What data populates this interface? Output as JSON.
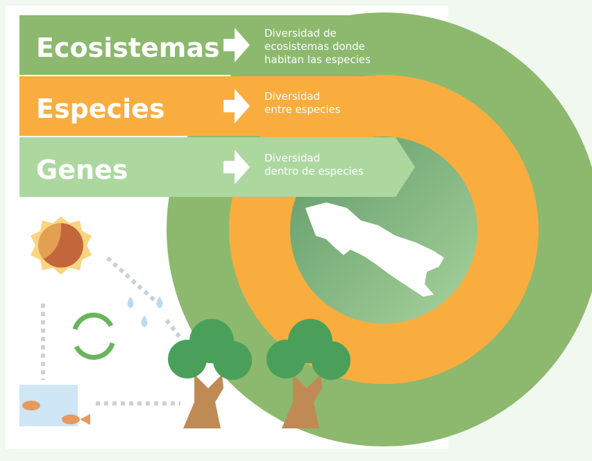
{
  "bands": [
    {
      "title": "Ecosistemas",
      "description": [
        "Diversidad de",
        "ecosistemas donde",
        "habitan las  especies"
      ]
    },
    {
      "title": "Especies",
      "description": [
        "Diversidad",
        "entre especies"
      ]
    },
    {
      "title": "Genes",
      "description": [
        "Diversidad",
        "dentro de especies"
      ]
    }
  ]
}
